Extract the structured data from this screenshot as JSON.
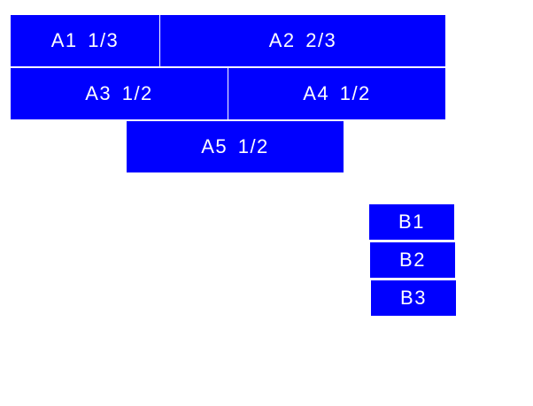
{
  "colors": {
    "box": "#0000ff",
    "text": "#ffffff"
  },
  "group_a": {
    "items": [
      {
        "label": "A1 1/3"
      },
      {
        "label": "A2 2/3"
      },
      {
        "label": "A3 1/2"
      },
      {
        "label": "A4 1/2"
      },
      {
        "label": "A5 1/2"
      }
    ]
  },
  "group_b": {
    "items": [
      {
        "label": "B1"
      },
      {
        "label": "B2"
      },
      {
        "label": "B3"
      }
    ]
  }
}
